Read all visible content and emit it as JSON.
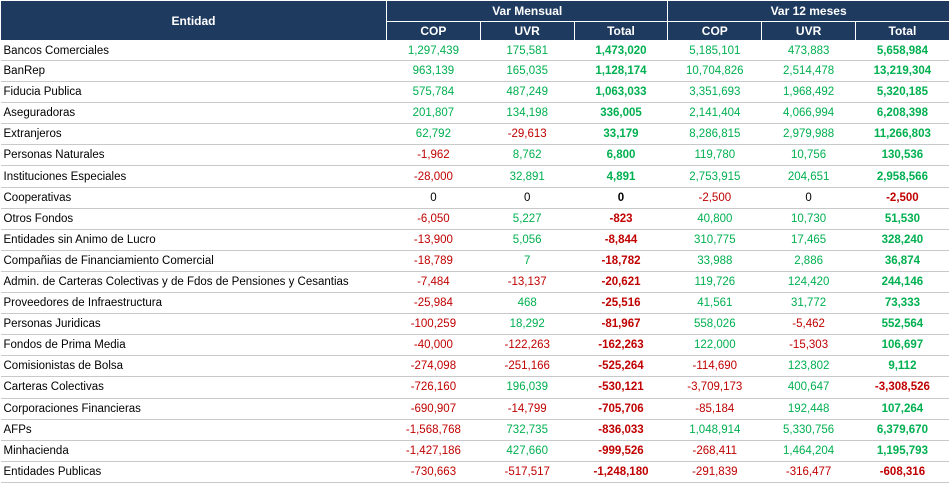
{
  "headers": {
    "entity": "Entidad",
    "group_monthly": "Var Mensual",
    "group_annual": "Var 12 meses",
    "sub": [
      "COP",
      "UVR",
      "Total",
      "COP",
      "UVR",
      "Total"
    ]
  },
  "colors": {
    "header_bg": "#1f3a5f",
    "positive": "#00b050",
    "negative": "#c00000",
    "zero": "#000000"
  },
  "rows": [
    {
      "name": "Bancos Comerciales",
      "values": [
        "1,297,439",
        "175,581",
        "1,473,020",
        "5,185,101",
        "473,883",
        "5,658,984"
      ]
    },
    {
      "name": "BanRep",
      "values": [
        "963,139",
        "165,035",
        "1,128,174",
        "10,704,826",
        "2,514,478",
        "13,219,304"
      ]
    },
    {
      "name": "Fiducia Publica",
      "values": [
        "575,784",
        "487,249",
        "1,063,033",
        "3,351,693",
        "1,968,492",
        "5,320,185"
      ]
    },
    {
      "name": "Aseguradoras",
      "values": [
        "201,807",
        "134,198",
        "336,005",
        "2,141,404",
        "4,066,994",
        "6,208,398"
      ]
    },
    {
      "name": "Extranjeros",
      "values": [
        "62,792",
        "-29,613",
        "33,179",
        "8,286,815",
        "2,979,988",
        "11,266,803"
      ]
    },
    {
      "name": "Personas Naturales",
      "values": [
        "-1,962",
        "8,762",
        "6,800",
        "119,780",
        "10,756",
        "130,536"
      ]
    },
    {
      "name": "Instituciones Especiales",
      "values": [
        "-28,000",
        "32,891",
        "4,891",
        "2,753,915",
        "204,651",
        "2,958,566"
      ]
    },
    {
      "name": "Cooperativas",
      "values": [
        "0",
        "0",
        "0",
        "-2,500",
        "0",
        "-2,500"
      ]
    },
    {
      "name": "Otros Fondos",
      "values": [
        "-6,050",
        "5,227",
        "-823",
        "40,800",
        "10,730",
        "51,530"
      ]
    },
    {
      "name": "Entidades sin Animo de Lucro",
      "values": [
        "-13,900",
        "5,056",
        "-8,844",
        "310,775",
        "17,465",
        "328,240"
      ]
    },
    {
      "name": "Compañias de Financiamiento Comercial",
      "values": [
        "-18,789",
        "7",
        "-18,782",
        "33,988",
        "2,886",
        "36,874"
      ]
    },
    {
      "name": "Admin. de Carteras Colectivas y de Fdos de Pensiones y Cesantias",
      "values": [
        "-7,484",
        "-13,137",
        "-20,621",
        "119,726",
        "124,420",
        "244,146"
      ]
    },
    {
      "name": "Proveedores de Infraestructura",
      "values": [
        "-25,984",
        "468",
        "-25,516",
        "41,561",
        "31,772",
        "73,333"
      ]
    },
    {
      "name": "Personas Juridicas",
      "values": [
        "-100,259",
        "18,292",
        "-81,967",
        "558,026",
        "-5,462",
        "552,564"
      ]
    },
    {
      "name": "Fondos de Prima Media",
      "values": [
        "-40,000",
        "-122,263",
        "-162,263",
        "122,000",
        "-15,303",
        "106,697"
      ]
    },
    {
      "name": "Comisionistas de Bolsa",
      "values": [
        "-274,098",
        "-251,166",
        "-525,264",
        "-114,690",
        "123,802",
        "9,112"
      ]
    },
    {
      "name": "Carteras Colectivas",
      "values": [
        "-726,160",
        "196,039",
        "-530,121",
        "-3,709,173",
        "400,647",
        "-3,308,526"
      ]
    },
    {
      "name": "Corporaciones Financieras",
      "values": [
        "-690,907",
        "-14,799",
        "-705,706",
        "-85,184",
        "192,448",
        "107,264"
      ]
    },
    {
      "name": "AFPs",
      "values": [
        "-1,568,768",
        "732,735",
        "-836,033",
        "1,048,914",
        "5,330,756",
        "6,379,670"
      ]
    },
    {
      "name": "Minhacienda",
      "values": [
        "-1,427,186",
        "427,660",
        "-999,526",
        "-268,411",
        "1,464,204",
        "1,195,793"
      ]
    },
    {
      "name": "Entidades Publicas",
      "values": [
        "-730,663",
        "-517,517",
        "-1,248,180",
        "-291,839",
        "-316,477",
        "-608,316"
      ]
    }
  ]
}
